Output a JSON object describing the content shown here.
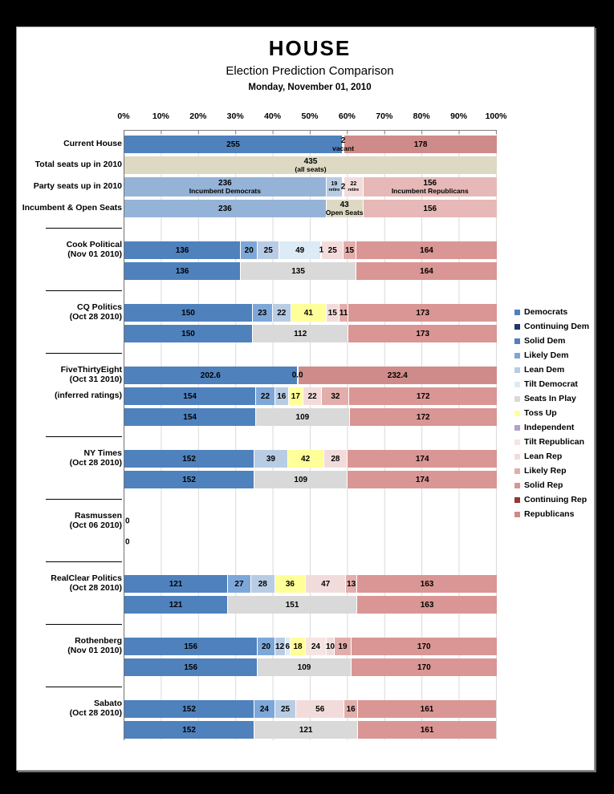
{
  "page": {
    "title": "HOUSE",
    "subtitle": "Election Prediction Comparison",
    "date": "Monday, November 01, 2010"
  },
  "colors": {
    "democrats": "#4f81bd",
    "continuing_dem": "#1f3864",
    "solid_dem": "#4f81bd",
    "likely_dem": "#7da7d8",
    "lean_dem": "#b8cce4",
    "tilt_dem": "#dcebf5",
    "seats_in_play": "#d9d9d9",
    "toss_up": "#ffff99",
    "independent": "#b3a2c7",
    "tilt_rep": "#f6e4e3",
    "lean_rep": "#f2dcdb",
    "likely_rep": "#e2aeac",
    "solid_rep": "#d99694",
    "continuing_rep": "#943634",
    "republicans": "#cf8b89",
    "incumbent_dem": "#95b3d7",
    "incumbent_rep": "#e6b9b8",
    "open_seats": "#ddd9c3",
    "white": "#ffffff"
  },
  "legend": [
    {
      "label": "Democrats",
      "color": "democrats"
    },
    {
      "label": "Continuing Dem",
      "color": "continuing_dem"
    },
    {
      "label": "Solid Dem",
      "color": "solid_dem"
    },
    {
      "label": "Likely Dem",
      "color": "likely_dem"
    },
    {
      "label": "Lean Dem",
      "color": "lean_dem"
    },
    {
      "label": "Tilt Democrat",
      "color": "tilt_dem"
    },
    {
      "label": "Seats In Play",
      "color": "seats_in_play"
    },
    {
      "label": "Toss Up",
      "color": "toss_up"
    },
    {
      "label": "Independent",
      "color": "independent"
    },
    {
      "label": "Tilt Republican",
      "color": "tilt_rep"
    },
    {
      "label": "Lean Rep",
      "color": "lean_rep"
    },
    {
      "label": "Likely Rep",
      "color": "likely_rep"
    },
    {
      "label": "Solid Rep",
      "color": "solid_rep"
    },
    {
      "label": "Continuing Rep",
      "color": "continuing_rep"
    },
    {
      "label": "Republicans",
      "color": "republicans"
    }
  ],
  "chart_data": {
    "type": "bar",
    "stacked": true,
    "orientation": "horizontal",
    "total": 435,
    "x_tick_labels": [
      "0%",
      "10%",
      "20%",
      "30%",
      "40%",
      "50%",
      "60%",
      "70%",
      "80%",
      "90%",
      "100%"
    ],
    "grid": true,
    "legend_position": "right",
    "groups": [
      {
        "separator": false,
        "rows": [
          {
            "label_lines": [
              "Current House"
            ],
            "segments": [
              {
                "value": 255,
                "label": "255",
                "color": "democrats"
              },
              {
                "value": 2,
                "label_lines": [
                  "2",
                  "vacant"
                ],
                "color": "white",
                "overflow": true
              },
              {
                "value": 178,
                "label": "178",
                "color": "republicans"
              }
            ]
          },
          {
            "label_lines": [
              "Total seats up in 2010"
            ],
            "segments": [
              {
                "value": 435,
                "label_lines": [
                  "435",
                  "(all seats)"
                ],
                "color": "open_seats"
              }
            ]
          },
          {
            "label_lines": [
              "Party seats up in 2010"
            ],
            "h": 24,
            "segments": [
              {
                "value": 236,
                "label_lines": [
                  "236",
                  "Incumbent Democrats"
                ],
                "color": "incumbent_dem"
              },
              {
                "value": 19,
                "label_lines": [
                  "19",
                  "retire"
                ],
                "color": "lean_dem",
                "small": true
              },
              {
                "value": 2,
                "label": "2",
                "color": "white",
                "overflow": true
              },
              {
                "value": 22,
                "label_lines": [
                  "22",
                  "retire"
                ],
                "color": "lean_rep",
                "small": true
              },
              {
                "value": 156,
                "label_lines": [
                  "156",
                  "Incumbent Republicans"
                ],
                "color": "incumbent_rep"
              }
            ]
          },
          {
            "label_lines": [
              "Incumbent & Open Seats"
            ],
            "segments": [
              {
                "value": 236,
                "label": "236",
                "color": "incumbent_dem"
              },
              {
                "value": 43,
                "label_lines": [
                  "43",
                  "Open Seats"
                ],
                "color": "open_seats"
              },
              {
                "value": 156,
                "label": "156",
                "color": "incumbent_rep"
              }
            ]
          }
        ]
      },
      {
        "separator": true,
        "rows": [
          {
            "label_lines": [
              "Cook Political",
              "(Nov 01 2010)"
            ],
            "segments": [
              {
                "value": 136,
                "label": "136",
                "color": "solid_dem"
              },
              {
                "value": 20,
                "label": "20",
                "color": "likely_dem"
              },
              {
                "value": 25,
                "label": "25",
                "color": "lean_dem"
              },
              {
                "value": 49,
                "label": "49",
                "color": "tilt_dem"
              },
              {
                "value": 1,
                "label": "1",
                "color": "white",
                "overflow": true
              },
              {
                "value": 25,
                "label": "25",
                "color": "lean_rep"
              },
              {
                "value": 15,
                "label": "15",
                "color": "likely_rep"
              },
              {
                "value": 164,
                "label": "164",
                "color": "solid_rep"
              }
            ]
          },
          {
            "segments": [
              {
                "value": 136,
                "label": "136",
                "color": "solid_dem"
              },
              {
                "value": 135,
                "label": "135",
                "color": "seats_in_play"
              },
              {
                "value": 164,
                "label": "164",
                "color": "solid_rep"
              }
            ]
          }
        ]
      },
      {
        "separator": true,
        "rows": [
          {
            "label_lines": [
              "CQ Politics",
              "(Oct 28 2010)"
            ],
            "segments": [
              {
                "value": 150,
                "label": "150",
                "color": "solid_dem"
              },
              {
                "value": 23,
                "label": "23",
                "color": "likely_dem"
              },
              {
                "value": 22,
                "label": "22",
                "color": "lean_dem"
              },
              {
                "value": 41,
                "label": "41",
                "color": "toss_up"
              },
              {
                "value": 15,
                "label": "15",
                "color": "lean_rep"
              },
              {
                "value": 11,
                "label": "11",
                "color": "likely_rep"
              },
              {
                "value": 173,
                "label": "173",
                "color": "solid_rep"
              }
            ]
          },
          {
            "segments": [
              {
                "value": 150,
                "label": "150",
                "color": "solid_dem"
              },
              {
                "value": 112,
                "label": "112",
                "color": "seats_in_play"
              },
              {
                "value": 173,
                "label": "173",
                "color": "solid_rep"
              }
            ]
          }
        ]
      },
      {
        "separator": true,
        "rows": [
          {
            "label_lines": [
              "FiveThirtyEight",
              "(Oct 31 2010)"
            ],
            "segments": [
              {
                "value": 202.6,
                "label": "202.6",
                "color": "democrats"
              },
              {
                "value": 0,
                "label": "0.0",
                "color": "white",
                "overflow": true
              },
              {
                "value": 232.4,
                "label": "232.4",
                "color": "republicans"
              }
            ]
          },
          {
            "label_lines": [
              "(inferred ratings)"
            ],
            "segments": [
              {
                "value": 154,
                "label": "154",
                "color": "solid_dem"
              },
              {
                "value": 22,
                "label": "22",
                "color": "likely_dem"
              },
              {
                "value": 16,
                "label": "16",
                "color": "lean_dem"
              },
              {
                "value": 17,
                "label": "17",
                "color": "toss_up"
              },
              {
                "value": 22,
                "label": "22",
                "color": "lean_rep"
              },
              {
                "value": 32,
                "label": "32",
                "color": "likely_rep"
              },
              {
                "value": 172,
                "label": "172",
                "color": "solid_rep"
              }
            ]
          },
          {
            "segments": [
              {
                "value": 154,
                "label": "154",
                "color": "solid_dem"
              },
              {
                "value": 109,
                "label": "109",
                "color": "seats_in_play"
              },
              {
                "value": 172,
                "label": "172",
                "color": "solid_rep"
              }
            ]
          }
        ]
      },
      {
        "separator": true,
        "rows": [
          {
            "label_lines": [
              "NY Times",
              "(Oct 28 2010)"
            ],
            "segments": [
              {
                "value": 152,
                "label": "152",
                "color": "solid_dem"
              },
              {
                "value": 39,
                "label": "39",
                "color": "lean_dem"
              },
              {
                "value": 42,
                "label": "42",
                "color": "toss_up"
              },
              {
                "value": 28,
                "label": "28",
                "color": "lean_rep"
              },
              {
                "value": 174,
                "label": "174",
                "color": "solid_rep"
              }
            ]
          },
          {
            "segments": [
              {
                "value": 152,
                "label": "152",
                "color": "solid_dem"
              },
              {
                "value": 109,
                "label": "109",
                "color": "seats_in_play"
              },
              {
                "value": 174,
                "label": "174",
                "color": "solid_rep"
              }
            ]
          }
        ]
      },
      {
        "separator": true,
        "rows": [
          {
            "label_lines": [
              "Rasmussen",
              "(Oct 06 2010)"
            ],
            "segments": [],
            "zero_label": "0"
          },
          {
            "segments": [],
            "zero_label": "0"
          }
        ]
      },
      {
        "separator": true,
        "rows": [
          {
            "label_lines": [
              "RealClear Politics",
              "(Oct 28 2010)"
            ],
            "segments": [
              {
                "value": 121,
                "label": "121",
                "color": "solid_dem"
              },
              {
                "value": 27,
                "label": "27",
                "color": "likely_dem"
              },
              {
                "value": 28,
                "label": "28",
                "color": "lean_dem"
              },
              {
                "value": 36,
                "label": "36",
                "color": "toss_up"
              },
              {
                "value": 47,
                "label": "47",
                "color": "lean_rep"
              },
              {
                "value": 13,
                "label": "13",
                "color": "likely_rep"
              },
              {
                "value": 163,
                "label": "163",
                "color": "solid_rep"
              }
            ]
          },
          {
            "segments": [
              {
                "value": 121,
                "label": "121",
                "color": "solid_dem"
              },
              {
                "value": 151,
                "label": "151",
                "color": "seats_in_play"
              },
              {
                "value": 163,
                "label": "163",
                "color": "solid_rep"
              }
            ]
          }
        ]
      },
      {
        "separator": true,
        "rows": [
          {
            "label_lines": [
              "Rothenberg",
              "(Nov 01 2010)"
            ],
            "segments": [
              {
                "value": 156,
                "label": "156",
                "color": "solid_dem"
              },
              {
                "value": 20,
                "label": "20",
                "color": "likely_dem"
              },
              {
                "value": 12,
                "label": "12",
                "color": "lean_dem"
              },
              {
                "value": 6,
                "label": "6",
                "color": "tilt_dem"
              },
              {
                "value": 18,
                "label": "18",
                "color": "toss_up"
              },
              {
                "value": 24,
                "label": "24",
                "color": "tilt_rep"
              },
              {
                "value": 10,
                "label": "10",
                "color": "lean_rep"
              },
              {
                "value": 19,
                "label": "19",
                "color": "likely_rep"
              },
              {
                "value": 170,
                "label": "170",
                "color": "solid_rep"
              }
            ]
          },
          {
            "segments": [
              {
                "value": 156,
                "label": "156",
                "color": "solid_dem"
              },
              {
                "value": 109,
                "label": "109",
                "color": "seats_in_play"
              },
              {
                "value": 170,
                "label": "170",
                "color": "solid_rep"
              }
            ]
          }
        ]
      },
      {
        "separator": true,
        "rows": [
          {
            "label_lines": [
              "Sabato",
              "(Oct 28 2010)"
            ],
            "segments": [
              {
                "value": 152,
                "label": "152",
                "color": "solid_dem"
              },
              {
                "value": 24,
                "label": "24",
                "color": "likely_dem"
              },
              {
                "value": 25,
                "label": "25",
                "color": "lean_dem"
              },
              {
                "value": 56,
                "label": "56",
                "color": "lean_rep"
              },
              {
                "value": 16,
                "label": "16",
                "color": "likely_rep"
              },
              {
                "value": 161,
                "label": "161",
                "color": "solid_rep"
              }
            ]
          },
          {
            "segments": [
              {
                "value": 152,
                "label": "152",
                "color": "solid_dem"
              },
              {
                "value": 121,
                "label": "121",
                "color": "seats_in_play"
              },
              {
                "value": 161,
                "label": "161",
                "color": "solid_rep"
              }
            ]
          }
        ]
      }
    ]
  }
}
